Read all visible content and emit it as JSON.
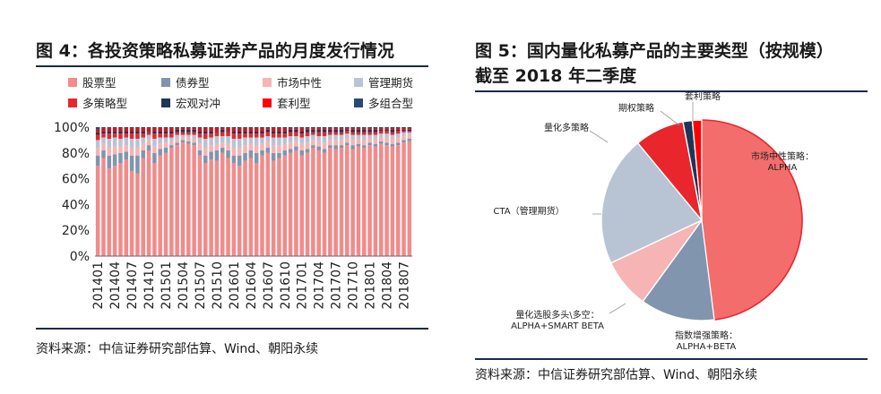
{
  "left": {
    "title": "图 4：各投资策略私募证券产品的月度发行情况",
    "source": "资料来源：中信证券研究部估算、Wind、朝阳永续"
  },
  "right": {
    "title_line1": "图 5：国内量化私募产品的主要类型（按规模）",
    "title_line2": "截至 2018 年二季度",
    "source": "资料来源：中信证券研究部估算、Wind、朝阳永续"
  },
  "colors": {
    "rule": "#1b2a4a",
    "stock": "#f28b8b",
    "bond": "#8195ae",
    "market_neutral": "#f6b4b4",
    "managed_futures": "#b8c4d4",
    "multi_strategy": "#e8262b",
    "macro": "#1d3557",
    "arbitrage": "#ff0000",
    "multi_portfolio": "#264b73"
  },
  "chart_data": [
    {
      "type": "bar",
      "stacked": true,
      "percent": true,
      "legend_position": "top",
      "ylim": [
        0,
        100
      ],
      "yticks": [
        "0%",
        "20%",
        "40%",
        "60%",
        "80%",
        "100%"
      ],
      "xtick_labels": [
        "201401",
        "201404",
        "201407",
        "201410",
        "201501",
        "201504",
        "201507",
        "201510",
        "201601",
        "201604",
        "201607",
        "201610",
        "201701",
        "201704",
        "201707",
        "201710",
        "201801",
        "201804",
        "201807"
      ],
      "categories": [
        "201401",
        "201402",
        "201403",
        "201404",
        "201405",
        "201406",
        "201407",
        "201408",
        "201409",
        "201410",
        "201411",
        "201412",
        "201501",
        "201502",
        "201503",
        "201504",
        "201505",
        "201506",
        "201507",
        "201508",
        "201509",
        "201510",
        "201511",
        "201512",
        "201601",
        "201602",
        "201603",
        "201604",
        "201605",
        "201606",
        "201607",
        "201608",
        "201609",
        "201610",
        "201611",
        "201612",
        "201701",
        "201702",
        "201703",
        "201704",
        "201705",
        "201706",
        "201707",
        "201708",
        "201709",
        "201710",
        "201711",
        "201712",
        "201801",
        "201802",
        "201803",
        "201804",
        "201805",
        "201806",
        "201807",
        "201808"
      ],
      "series": [
        {
          "name": "股票型",
          "color_key": "stock",
          "values": [
            70,
            76,
            68,
            70,
            72,
            75,
            66,
            64,
            76,
            82,
            72,
            78,
            80,
            84,
            86,
            88,
            87,
            86,
            78,
            72,
            75,
            74,
            80,
            76,
            72,
            70,
            74,
            76,
            72,
            78,
            80,
            74,
            76,
            78,
            80,
            82,
            78,
            80,
            84,
            82,
            80,
            84,
            83,
            84,
            86,
            83,
            85,
            84,
            86,
            85,
            87,
            86,
            85,
            86,
            88,
            89
          ]
        },
        {
          "name": "债券型",
          "color_key": "bond",
          "values": [
            8,
            6,
            10,
            9,
            8,
            6,
            12,
            14,
            6,
            4,
            8,
            5,
            4,
            2,
            2,
            2,
            2,
            2,
            4,
            6,
            6,
            8,
            4,
            6,
            6,
            8,
            6,
            6,
            8,
            4,
            4,
            6,
            4,
            4,
            3,
            3,
            4,
            3,
            2,
            3,
            3,
            2,
            3,
            2,
            2,
            3,
            2,
            2,
            2,
            2,
            2,
            2,
            2,
            2,
            2,
            2
          ]
        },
        {
          "name": "市场中性",
          "color_key": "market_neutral",
          "values": [
            6,
            5,
            6,
            6,
            5,
            5,
            6,
            6,
            5,
            4,
            5,
            4,
            4,
            3,
            3,
            2,
            3,
            3,
            5,
            6,
            5,
            5,
            4,
            5,
            6,
            6,
            6,
            5,
            6,
            5,
            5,
            6,
            6,
            5,
            5,
            4,
            5,
            5,
            4,
            4,
            5,
            4,
            4,
            4,
            4,
            4,
            4,
            4,
            3,
            4,
            3,
            4,
            4,
            4,
            3,
            3
          ]
        },
        {
          "name": "管理期货",
          "color_key": "managed_futures",
          "values": [
            6,
            5,
            7,
            7,
            6,
            6,
            7,
            7,
            5,
            4,
            6,
            5,
            4,
            3,
            3,
            2,
            2,
            3,
            5,
            7,
            6,
            6,
            5,
            6,
            7,
            7,
            6,
            5,
            6,
            5,
            4,
            6,
            6,
            5,
            5,
            4,
            5,
            5,
            4,
            4,
            5,
            4,
            4,
            4,
            3,
            4,
            3,
            4,
            3,
            3,
            3,
            3,
            3,
            3,
            3,
            2
          ]
        },
        {
          "name": "多策略型",
          "color_key": "multi_strategy",
          "values": [
            4,
            3,
            4,
            3,
            4,
            3,
            4,
            4,
            3,
            2,
            4,
            3,
            3,
            3,
            2,
            2,
            2,
            2,
            3,
            4,
            3,
            3,
            3,
            3,
            4,
            4,
            3,
            3,
            3,
            3,
            3,
            3,
            3,
            3,
            3,
            3,
            3,
            3,
            2,
            3,
            3,
            2,
            2,
            2,
            2,
            2,
            2,
            2,
            2,
            2,
            2,
            2,
            2,
            2,
            1,
            1
          ]
        },
        {
          "name": "宏观对冲",
          "color_key": "macro",
          "values": [
            2,
            2,
            2,
            2,
            2,
            2,
            2,
            2,
            2,
            1,
            2,
            2,
            2,
            2,
            2,
            2,
            2,
            2,
            2,
            2,
            2,
            1,
            2,
            1,
            2,
            2,
            2,
            2,
            2,
            2,
            2,
            2,
            2,
            2,
            2,
            2,
            2,
            2,
            2,
            2,
            2,
            2,
            2,
            2,
            1,
            2,
            2,
            2,
            2,
            2,
            1,
            1,
            2,
            1,
            1,
            1
          ]
        },
        {
          "name": "套利型",
          "color_key": "arbitrage",
          "values": [
            2,
            2,
            2,
            2,
            2,
            2,
            2,
            2,
            2,
            2,
            2,
            2,
            2,
            2,
            1,
            1,
            1,
            1,
            2,
            2,
            2,
            2,
            1,
            2,
            2,
            2,
            2,
            2,
            2,
            2,
            1,
            2,
            2,
            2,
            1,
            1,
            2,
            1,
            1,
            1,
            1,
            1,
            1,
            1,
            1,
            1,
            1,
            1,
            1,
            1,
            1,
            1,
            1,
            1,
            1,
            1
          ]
        },
        {
          "name": "多组合型",
          "color_key": "multi_portfolio",
          "values": [
            2,
            1,
            1,
            1,
            1,
            1,
            1,
            1,
            1,
            1,
            1,
            1,
            1,
            1,
            1,
            1,
            1,
            1,
            1,
            1,
            1,
            1,
            1,
            1,
            1,
            1,
            1,
            1,
            1,
            1,
            1,
            1,
            1,
            1,
            1,
            1,
            1,
            1,
            1,
            1,
            1,
            1,
            1,
            1,
            1,
            1,
            1,
            1,
            1,
            1,
            1,
            1,
            1,
            1,
            1,
            1
          ]
        }
      ]
    },
    {
      "type": "pie",
      "slices": [
        {
          "label": "市场中性策略：",
          "label2": "ALPHA",
          "value": 48,
          "color_key": "market_neutral_pie"
        },
        {
          "label": "指数增强策略：",
          "label2": "ALPHA+BETA",
          "value": 12,
          "color_key": "bond"
        },
        {
          "label": "量化选股多头\\多空：",
          "label2": "ALPHA+SMART  BETA",
          "value": 8,
          "color_key": "market_neutral"
        },
        {
          "label": "CTA（管理期货）",
          "label2": "",
          "value": 21,
          "color_key": "managed_futures"
        },
        {
          "label": "量化多策略",
          "label2": "",
          "value": 8,
          "color_key": "multi_strategy"
        },
        {
          "label": "期权策略",
          "label2": "",
          "value": 1.5,
          "color_key": "macro"
        },
        {
          "label": "套利策略",
          "label2": "",
          "value": 1.5,
          "color_key": "arbitrage"
        }
      ],
      "pie_color": "#f46d6d"
    }
  ]
}
